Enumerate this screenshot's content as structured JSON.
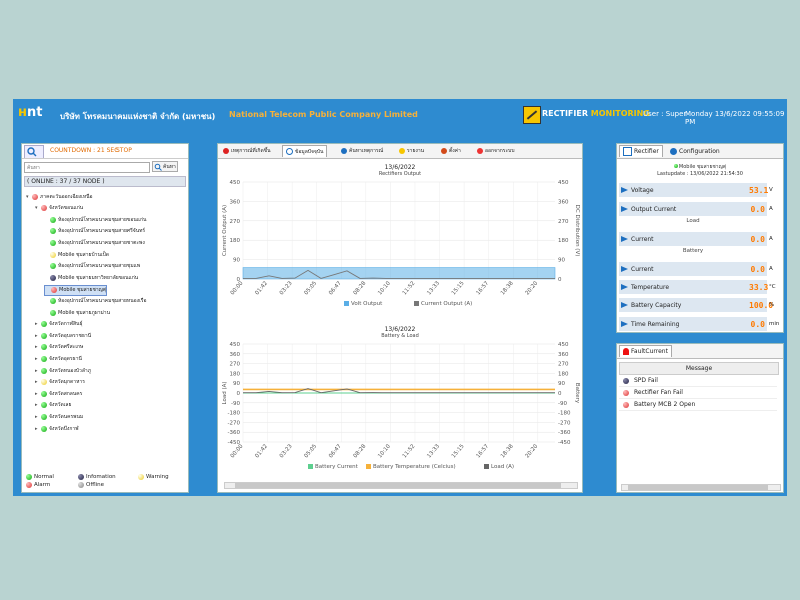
{
  "header": {
    "company_th": "บริษัท โทรคมนาคมแห่งชาติ จำกัด (มหาชน)",
    "company_en": "National Telecom Public Company Limited",
    "app_title_1": "RECTIFIER",
    "app_title_2": "MONITORING",
    "user": "User : Super",
    "datetime": "Monday 13/6/2022 09:55:09 PM"
  },
  "left": {
    "countdown": "COUNTDOWN : 21 SEC",
    "stop": "STOP",
    "search_placeholder": "ค้นหา",
    "search_button": "ค้นหา",
    "online": "( ONLINE : 37 / 37 NODE )",
    "tree": [
      {
        "label": "ภาคตะวันออกเฉียงเหนือ",
        "level": 0,
        "expand": "▾",
        "status": "red"
      },
      {
        "label": "จังหวัดขอนแก่น",
        "level": 1,
        "expand": "▾",
        "status": "red"
      },
      {
        "label": "ห้องอุปกรณ์โทรคมนาคมชุมสายขอนแก่น",
        "level": 2,
        "expand": "",
        "status": "green"
      },
      {
        "label": "ห้องอุปกรณ์โทรคมนาคมชุมสายศรีจันทร์",
        "level": 2,
        "expand": "",
        "status": "green"
      },
      {
        "label": "ห้องอุปกรณ์โทรคมนาคมชุมสายชาตะพง",
        "level": 2,
        "expand": "",
        "status": "green"
      },
      {
        "label": "Mobile ชุมสายบ้านเป็ด",
        "level": 2,
        "expand": "",
        "status": "yellow"
      },
      {
        "label": "ห้องอุปกรณ์โทรคมนาคมชุมสายชุมแพ",
        "level": 2,
        "expand": "",
        "status": "green"
      },
      {
        "label": "Mobile ชุมสายมหาวิทยาลัยขอนแก่น",
        "level": 2,
        "expand": "",
        "status": "blue"
      },
      {
        "label": "Mobile ชุมสายชาญตุ่",
        "level": 2,
        "expand": "",
        "status": "red",
        "selected": true
      },
      {
        "label": "ห้องอุปกรณ์โทรคมนาคมชุมสายหนองเรือ",
        "level": 2,
        "expand": "",
        "status": "green"
      },
      {
        "label": "Mobile ชุมสายภูผาม่าน",
        "level": 2,
        "expand": "",
        "status": "green"
      },
      {
        "label": "จังหวัดกาฬสินธุ์",
        "level": 1,
        "expand": "▸",
        "status": "green"
      },
      {
        "label": "จังหวัดอุบลราชธานี",
        "level": 1,
        "expand": "▸",
        "status": "green"
      },
      {
        "label": "จังหวัดศรีสะเกษ",
        "level": 1,
        "expand": "▸",
        "status": "green"
      },
      {
        "label": "จังหวัดอุดรธานี",
        "level": 1,
        "expand": "▸",
        "status": "green"
      },
      {
        "label": "จังหวัดหนองบัวลำภู",
        "level": 1,
        "expand": "▸",
        "status": "green"
      },
      {
        "label": "จังหวัดมุกดาหาร",
        "level": 1,
        "expand": "▸",
        "status": "yellow"
      },
      {
        "label": "จังหวัดสกลนคร",
        "level": 1,
        "expand": "▸",
        "status": "green"
      },
      {
        "label": "จังหวัดเลย",
        "level": 1,
        "expand": "▸",
        "status": "green"
      },
      {
        "label": "จังหวัดนครพนม",
        "level": 1,
        "expand": "▸",
        "status": "green"
      },
      {
        "label": "จังหวัดบึงกาฬ",
        "level": 1,
        "expand": "▸",
        "status": "green"
      }
    ],
    "legend": {
      "normal": "Normal",
      "information": "Infomation",
      "warning": "Warning",
      "alarm": "Alarm",
      "offline": "Offline"
    }
  },
  "center": {
    "tabs": [
      "เหตุการณ์ที่เกิดขึ้น",
      "ข้อมูลปัจจุบัน",
      "ค้นหาเหตุการณ์",
      "รายงาน",
      "ตั้งค่า",
      "ออกจากระบบ"
    ],
    "active_tab": 1
  },
  "chart_data": [
    {
      "type": "line",
      "date": "13/6/2022",
      "title": "Rectifiers Output",
      "ylabel": "Current Output (A)",
      "y2label": "DC Distribution (V)",
      "ylim": [
        0,
        450
      ],
      "y2lim": [
        0,
        450
      ],
      "yticks": [
        "450",
        "360",
        "270",
        "180",
        "90",
        "0"
      ],
      "y2ticks": [
        "450",
        "360",
        "270",
        "180",
        "90",
        "0"
      ],
      "xticks": [
        "00:00",
        "01:42",
        "03:23",
        "05:05",
        "06:47",
        "08:28",
        "10:10",
        "11:52",
        "13:33",
        "15:15",
        "16:57",
        "18:38",
        "20:20"
      ],
      "series": [
        {
          "name": "Volt Output",
          "color": "#5aaee6",
          "values": [
            53,
            53,
            53,
            53,
            53,
            53,
            53,
            53,
            53,
            53,
            53,
            53,
            53,
            53,
            53,
            53,
            53,
            53,
            53,
            53,
            53,
            53,
            53,
            53,
            53
          ]
        },
        {
          "name": "Current Output (A)",
          "color": "#777777",
          "values": [
            3,
            3,
            15,
            3,
            4,
            40,
            3,
            20,
            38,
            3,
            4,
            3,
            3,
            3,
            3,
            3,
            3,
            3,
            3,
            3,
            3,
            3,
            3,
            3,
            3
          ]
        }
      ]
    },
    {
      "type": "line",
      "date": "13/6/2022",
      "title": "Battery & Load",
      "ylabel": "Load (A)",
      "y2label": "Battery",
      "ylim": [
        -450,
        450
      ],
      "y2lim": [
        -450,
        450
      ],
      "yticks": [
        "450",
        "360",
        "270",
        "180",
        "90",
        "0",
        "-90",
        "-180",
        "-270",
        "-360",
        "-450"
      ],
      "y2ticks": [
        "450",
        "360",
        "270",
        "180",
        "90",
        "0",
        "-90",
        "-180",
        "-270",
        "-360",
        "-450"
      ],
      "xticks": [
        "00:00",
        "01:42",
        "03:23",
        "05:05",
        "06:47",
        "08:28",
        "10:10",
        "11:52",
        "13:33",
        "15:15",
        "16:57",
        "18:38",
        "20:20"
      ],
      "series": [
        {
          "name": "Battery Current",
          "color": "#5dcf8f",
          "values": [
            0,
            0,
            0,
            0,
            0,
            0,
            0,
            0,
            0,
            0,
            0,
            0,
            0,
            0,
            0,
            0,
            0,
            0,
            0,
            0,
            0,
            0,
            0,
            0,
            0
          ]
        },
        {
          "name": "Battery Temperature (Celcius)",
          "color": "#f6b13a",
          "values": [
            33,
            33,
            33,
            33,
            33,
            33,
            33,
            33,
            33,
            33,
            33,
            33,
            33,
            33,
            33,
            33,
            33,
            33,
            33,
            33,
            33,
            33,
            33,
            33,
            33
          ]
        },
        {
          "name": "Load (A)",
          "color": "#666666",
          "values": [
            3,
            3,
            15,
            3,
            4,
            40,
            3,
            20,
            38,
            3,
            4,
            3,
            3,
            3,
            3,
            3,
            3,
            3,
            3,
            3,
            3,
            3,
            3,
            3,
            3
          ]
        }
      ]
    }
  ],
  "right": {
    "tab_rectifier": "Rectifier",
    "tab_config": "Configuration",
    "site": "Mobile ชุมสายชาญตุ่",
    "lastupdate": "Lastupdate : 13/06/2022 21:54:30",
    "rows": [
      {
        "label": "Voltage",
        "value": "53.1",
        "unit": "V"
      },
      {
        "label": "Output Current",
        "value": "0.0",
        "unit": "A"
      },
      {
        "label": "Current",
        "value": "0.0",
        "unit": "A"
      },
      {
        "label": "Current",
        "value": "0.0",
        "unit": "A"
      },
      {
        "label": "Temperature",
        "value": "33.3",
        "unit": "°C"
      },
      {
        "label": "Battery Capacity",
        "value": "100.0",
        "unit": "%"
      },
      {
        "label": "Time Remaining",
        "value": "0.0",
        "unit": "min"
      }
    ],
    "section_load": "Load",
    "section_battery": "Battery"
  },
  "fault": {
    "tab": "FaultCurrent",
    "header": "Message",
    "rows": [
      {
        "status": "blue",
        "message": "SPD Fail"
      },
      {
        "status": "red",
        "message": "Rectifier Fan Fail"
      },
      {
        "status": "red",
        "message": "Battery MCB 2 Open"
      }
    ]
  }
}
